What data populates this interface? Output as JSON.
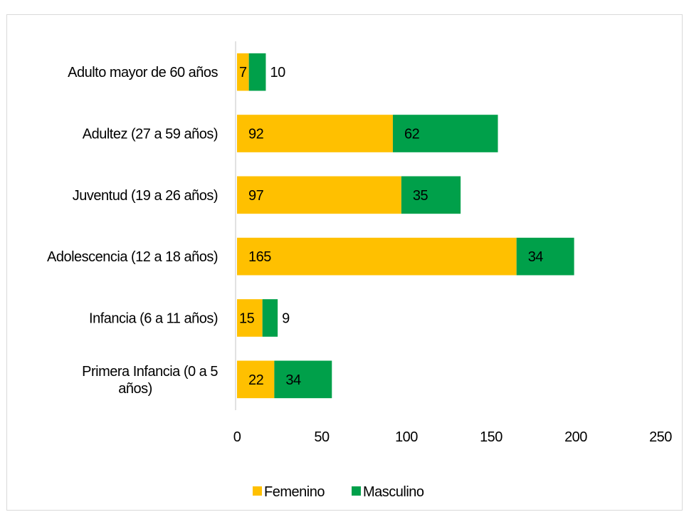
{
  "chart_data": {
    "type": "bar",
    "orientation": "horizontal",
    "stacked": true,
    "title": "",
    "xlabel": "",
    "ylabel": "",
    "categories": [
      [
        "Adulto mayor de 60 años"
      ],
      [
        "Adultez (27 a 59 años)"
      ],
      [
        "Juventud (19 a 26 años)"
      ],
      [
        "Adolescencia (12 a 18 años)"
      ],
      [
        "Infancia (6 a 11 años)"
      ],
      [
        "Primera Infancia (0 a 5",
        "años)"
      ]
    ],
    "series": [
      {
        "name": "Femenino",
        "color": "#FFC000",
        "values": [
          7,
          92,
          97,
          165,
          15,
          22
        ]
      },
      {
        "name": "Masculino",
        "color": "#00A04A",
        "values": [
          10,
          62,
          35,
          34,
          9,
          34
        ]
      }
    ],
    "xlim": [
      0,
      250
    ],
    "xticks": [
      0,
      50,
      100,
      150,
      200,
      250
    ],
    "grid": false,
    "legend_position": "bottom"
  }
}
